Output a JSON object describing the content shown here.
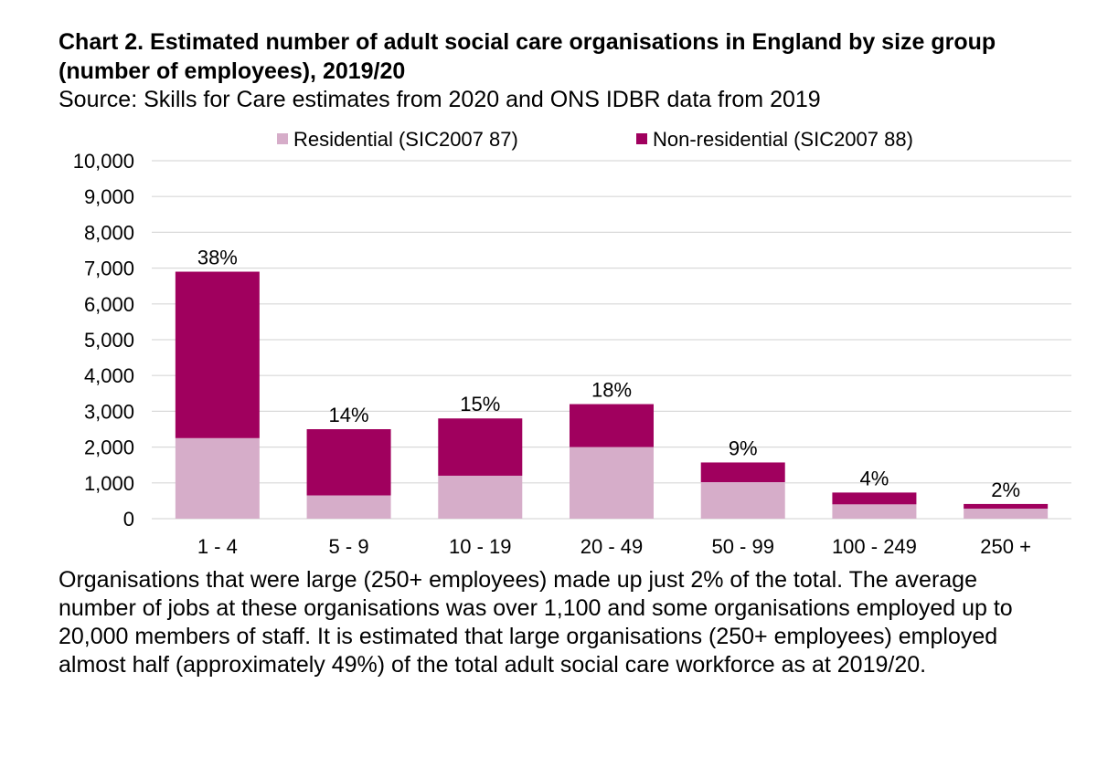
{
  "title": "Chart 2. Estimated number of adult social care organisations in England by size group (number of employees), 2019/20",
  "source": "Source: Skills for Care estimates from 2020 and ONS IDBR data from 2019",
  "caption": "Organisations that were large (250+ employees) made up just 2% of the total. The average number of jobs at these organisations was over 1,100 and some organisations employed up to 20,000 members of staff. It is estimated that large organisations (250+ employees) employed almost half (approximately 49%) of the total adult social care workforce as at 2019/20.",
  "chart_data": {
    "type": "bar",
    "stacked": true,
    "categories": [
      "1 - 4",
      "5 - 9",
      "10 - 19",
      "20 - 49",
      "50 - 99",
      "100 - 249",
      "250 +"
    ],
    "series": [
      {
        "name": "Residential (SIC2007 87)",
        "color": "#d6adc9",
        "values": [
          2250,
          650,
          1200,
          2000,
          1020,
          400,
          280
        ]
      },
      {
        "name": "Non-residential (SIC2007 88)",
        "color": "#a0005e",
        "values": [
          4650,
          1850,
          1600,
          1200,
          550,
          330,
          130
        ]
      }
    ],
    "data_labels": [
      "38%",
      "14%",
      "15%",
      "18%",
      "9%",
      "4%",
      "2%"
    ],
    "ylim": [
      0,
      10000
    ],
    "yticks": [
      0,
      1000,
      2000,
      3000,
      4000,
      5000,
      6000,
      7000,
      8000,
      9000,
      10000
    ],
    "ytick_labels": [
      "0",
      "1,000",
      "2,000",
      "3,000",
      "4,000",
      "5,000",
      "6,000",
      "7,000",
      "8,000",
      "9,000",
      "10,000"
    ],
    "grid": true,
    "legend": "top"
  }
}
